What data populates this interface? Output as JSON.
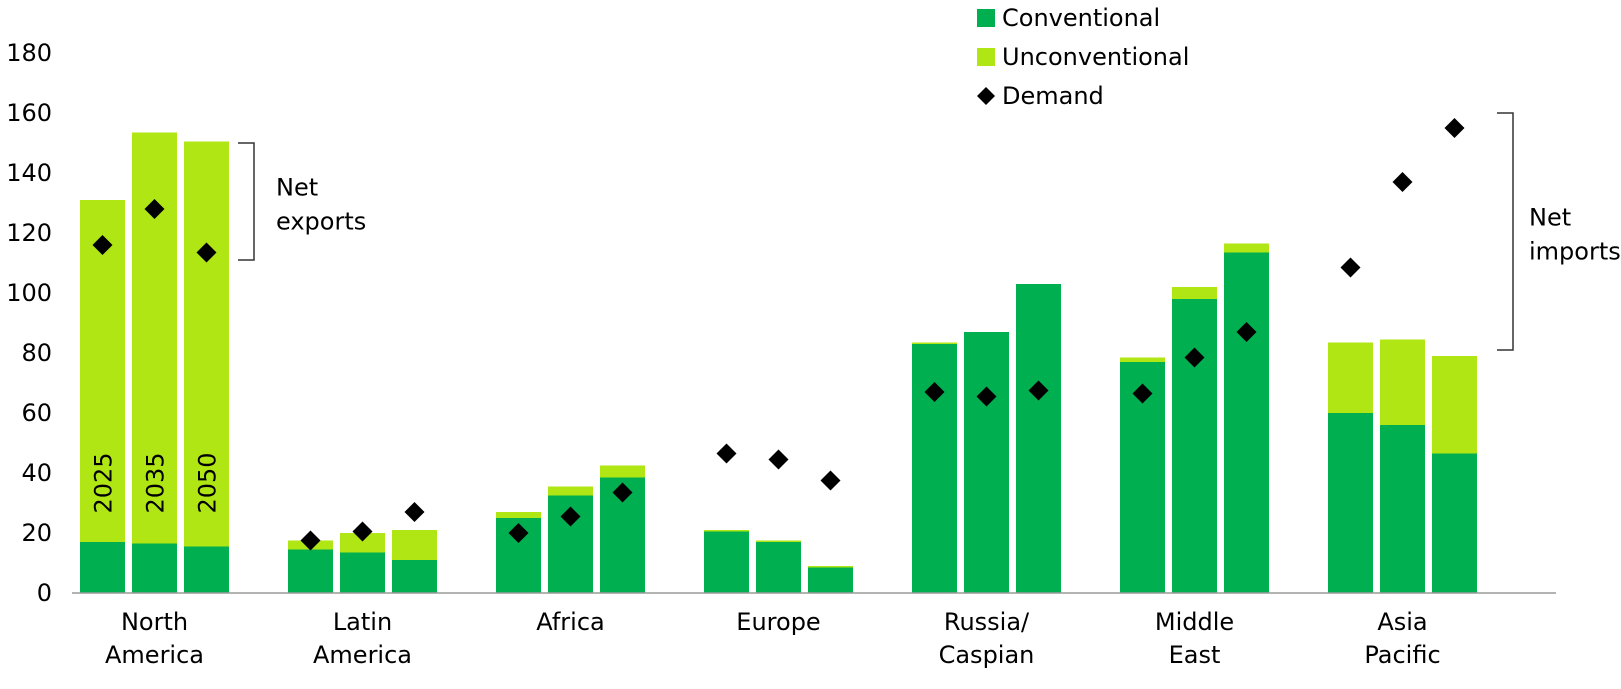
{
  "chart_data": {
    "type": "bar",
    "stacked": true,
    "categories": [
      [
        "North",
        "America"
      ],
      [
        "Latin",
        "America"
      ],
      [
        "Africa"
      ],
      [
        "Europe"
      ],
      [
        "Russia/",
        "Caspian"
      ],
      [
        "Middle",
        "East"
      ],
      [
        "Asia",
        "Pacific"
      ]
    ],
    "years": [
      "2025",
      "2035",
      "2050"
    ],
    "series": [
      {
        "name": "Conventional",
        "color": "#00B050",
        "values": [
          [
            17,
            16.5,
            15.5
          ],
          [
            14.5,
            13.5,
            11
          ],
          [
            25,
            32.5,
            38.5
          ],
          [
            20.5,
            17,
            8.5
          ],
          [
            83,
            87,
            103
          ],
          [
            77,
            98,
            113.5
          ],
          [
            60,
            56,
            46.5
          ]
        ]
      },
      {
        "name": "Unconventional",
        "color": "#B0E614",
        "values": [
          [
            114,
            137,
            135
          ],
          [
            3,
            6.5,
            10
          ],
          [
            2,
            3,
            4
          ],
          [
            0.5,
            0.5,
            0.5
          ],
          [
            0.5,
            0,
            0
          ],
          [
            1.5,
            4,
            3
          ],
          [
            23.5,
            28.5,
            32.5
          ]
        ]
      }
    ],
    "demand": {
      "name": "Demand",
      "color": "#000000",
      "values": [
        [
          116,
          128,
          113.5
        ],
        [
          17.5,
          20.5,
          27
        ],
        [
          20,
          25.5,
          33.5
        ],
        [
          46.5,
          44.5,
          37.5
        ],
        [
          67,
          65.5,
          67.5
        ],
        [
          66.5,
          78.5,
          87
        ],
        [
          108.5,
          137,
          155
        ]
      ]
    },
    "ylim": [
      0,
      180
    ],
    "yticks": [
      0,
      20,
      40,
      60,
      80,
      100,
      120,
      140,
      160,
      180
    ],
    "legend": [
      "Conventional",
      "Unconventional",
      "Demand"
    ],
    "legend_position": "top-center",
    "annotations": {
      "net_exports": {
        "lines": [
          "Net",
          "exports"
        ],
        "range": [
          111,
          150
        ]
      },
      "net_imports": {
        "lines": [
          "Net",
          "imports"
        ],
        "range": [
          81,
          160
        ]
      }
    },
    "grid": false
  }
}
